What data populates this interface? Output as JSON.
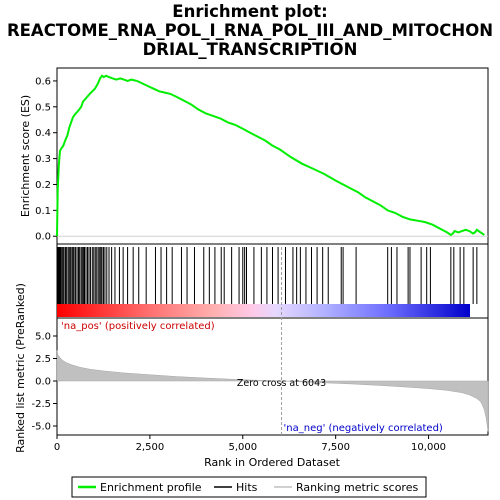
{
  "chart_data": {
    "type": "line",
    "title_lines": [
      "Enrichment plot:",
      "REACTOME_RNA_POL_I_RNA_POL_III_AND_MITOCHON",
      "DRIAL_TRANSCRIPTION"
    ],
    "xlabel": "Rank in Ordered Dataset",
    "ylabel_top": "Enrichment score (ES)",
    "ylabel_bottom": "Ranked list metric (PreRanked)",
    "x_range": [
      0,
      11600
    ],
    "x_ticks": [
      0,
      2500,
      5000,
      7500,
      10000
    ],
    "x_tick_labels": [
      "0",
      "2,500",
      "5,000",
      "7,500",
      "10,000"
    ],
    "es_ylim": [
      -0.03,
      0.65
    ],
    "es_ticks": [
      0.0,
      0.1,
      0.2,
      0.3,
      0.4,
      0.5,
      0.6
    ],
    "es_tick_labels": [
      "0.0",
      "0.1",
      "0.2",
      "0.3",
      "0.4",
      "0.5",
      "0.6"
    ],
    "metric_ylim": [
      -6,
      7
    ],
    "metric_ticks": [
      -5.0,
      -2.5,
      0.0,
      2.5,
      5.0
    ],
    "metric_tick_labels": [
      "-5.0",
      "-2.5",
      "0.0",
      "2.5",
      "5.0"
    ],
    "zero_cross": 6043,
    "zero_cross_label": "Zero cross at 6043",
    "pos_label": "'na_pos' (positively correlated)",
    "neg_label": "'na_neg' (negatively correlated)",
    "series": [
      {
        "name": "Enrichment profile",
        "x": [
          0,
          20,
          50,
          80,
          120,
          170,
          220,
          280,
          330,
          380,
          430,
          480,
          540,
          600,
          650,
          700,
          760,
          820,
          880,
          950,
          1020,
          1100,
          1160,
          1210,
          1260,
          1320,
          1400,
          1500,
          1600,
          1700,
          1800,
          1900,
          2000,
          2150,
          2300,
          2450,
          2600,
          2750,
          2900,
          3050,
          3200,
          3400,
          3600,
          3800,
          4000,
          4200,
          4400,
          4600,
          4800,
          5000,
          5200,
          5400,
          5600,
          5800,
          6000,
          6300,
          6600,
          6900,
          7200,
          7500,
          7700,
          7900,
          8100,
          8300,
          8500,
          8700,
          8900,
          9100,
          9300,
          9500,
          9700,
          9900,
          10100,
          10300,
          10500,
          10600,
          10650,
          10700,
          10800,
          10900,
          11000,
          11100,
          11200,
          11250,
          11300,
          11400,
          11500
        ],
        "y": [
          0.0,
          0.18,
          0.28,
          0.33,
          0.34,
          0.35,
          0.37,
          0.39,
          0.42,
          0.44,
          0.46,
          0.47,
          0.48,
          0.49,
          0.5,
          0.52,
          0.53,
          0.54,
          0.55,
          0.56,
          0.57,
          0.59,
          0.61,
          0.62,
          0.615,
          0.62,
          0.615,
          0.61,
          0.605,
          0.61,
          0.605,
          0.6,
          0.605,
          0.6,
          0.59,
          0.58,
          0.57,
          0.56,
          0.555,
          0.55,
          0.54,
          0.525,
          0.51,
          0.49,
          0.475,
          0.465,
          0.455,
          0.44,
          0.43,
          0.415,
          0.4,
          0.385,
          0.37,
          0.35,
          0.335,
          0.305,
          0.28,
          0.26,
          0.24,
          0.215,
          0.2,
          0.185,
          0.17,
          0.15,
          0.135,
          0.12,
          0.1,
          0.09,
          0.075,
          0.065,
          0.06,
          0.055,
          0.045,
          0.03,
          0.015,
          0.005,
          0.01,
          0.02,
          0.015,
          0.02,
          0.025,
          0.02,
          0.01,
          0.015,
          0.025,
          0.015,
          0.005
        ]
      },
      {
        "name": "Hits",
        "x": [
          20,
          40,
          60,
          80,
          100,
          130,
          160,
          190,
          230,
          260,
          300,
          330,
          360,
          400,
          430,
          460,
          500,
          540,
          580,
          610,
          650,
          680,
          710,
          740,
          780,
          820,
          860,
          900,
          950,
          990,
          1030,
          1070,
          1110,
          1150,
          1180,
          1210,
          1250,
          1290,
          1340,
          1400,
          1470,
          1560,
          1680,
          1780,
          1900,
          2050,
          2200,
          2400,
          2650,
          2800,
          2950,
          3100,
          3350,
          3500,
          3700,
          3950,
          4100,
          4250,
          4420,
          4500,
          4700,
          4900,
          5000,
          5050,
          5100,
          5300,
          5500,
          5650,
          5800,
          5950,
          6150,
          6350,
          6450,
          6550,
          6700,
          6850,
          7000,
          7150,
          7300,
          7650,
          7700,
          8050,
          8900,
          9000,
          9150,
          9450,
          9500,
          9800,
          9950,
          10050,
          10600,
          10680,
          10850,
          10950,
          11200,
          11300
        ]
      },
      {
        "name": "Ranking metric scores",
        "x": [
          0,
          30,
          80,
          150,
          250,
          400,
          600,
          900,
          1300,
          1800,
          2500,
          3200,
          4000,
          4800,
          5500,
          6043,
          6600,
          7300,
          8000,
          8700,
          9400,
          10000,
          10500,
          10900,
          11100,
          11300,
          11400,
          11450,
          11500,
          11550,
          11600
        ],
        "y": [
          3.4,
          2.9,
          2.6,
          2.3,
          2.05,
          1.8,
          1.55,
          1.3,
          1.1,
          0.9,
          0.7,
          0.5,
          0.33,
          0.18,
          0.07,
          0.0,
          -0.1,
          -0.22,
          -0.35,
          -0.5,
          -0.68,
          -0.85,
          -1.05,
          -1.3,
          -1.55,
          -1.95,
          -2.3,
          -2.7,
          -3.2,
          -4.1,
          -5.6
        ]
      }
    ],
    "legend": [
      "Enrichment profile",
      "Hits",
      "Ranking metric scores"
    ],
    "legend_position": "bottom",
    "colors": {
      "es_line": "#00ee00",
      "hits": "#000000",
      "metric_fill": "#c0c0c0",
      "zero_line": "#a0a0a0",
      "pos_text": "#cc0000",
      "neg_text": "#0000cc"
    }
  }
}
